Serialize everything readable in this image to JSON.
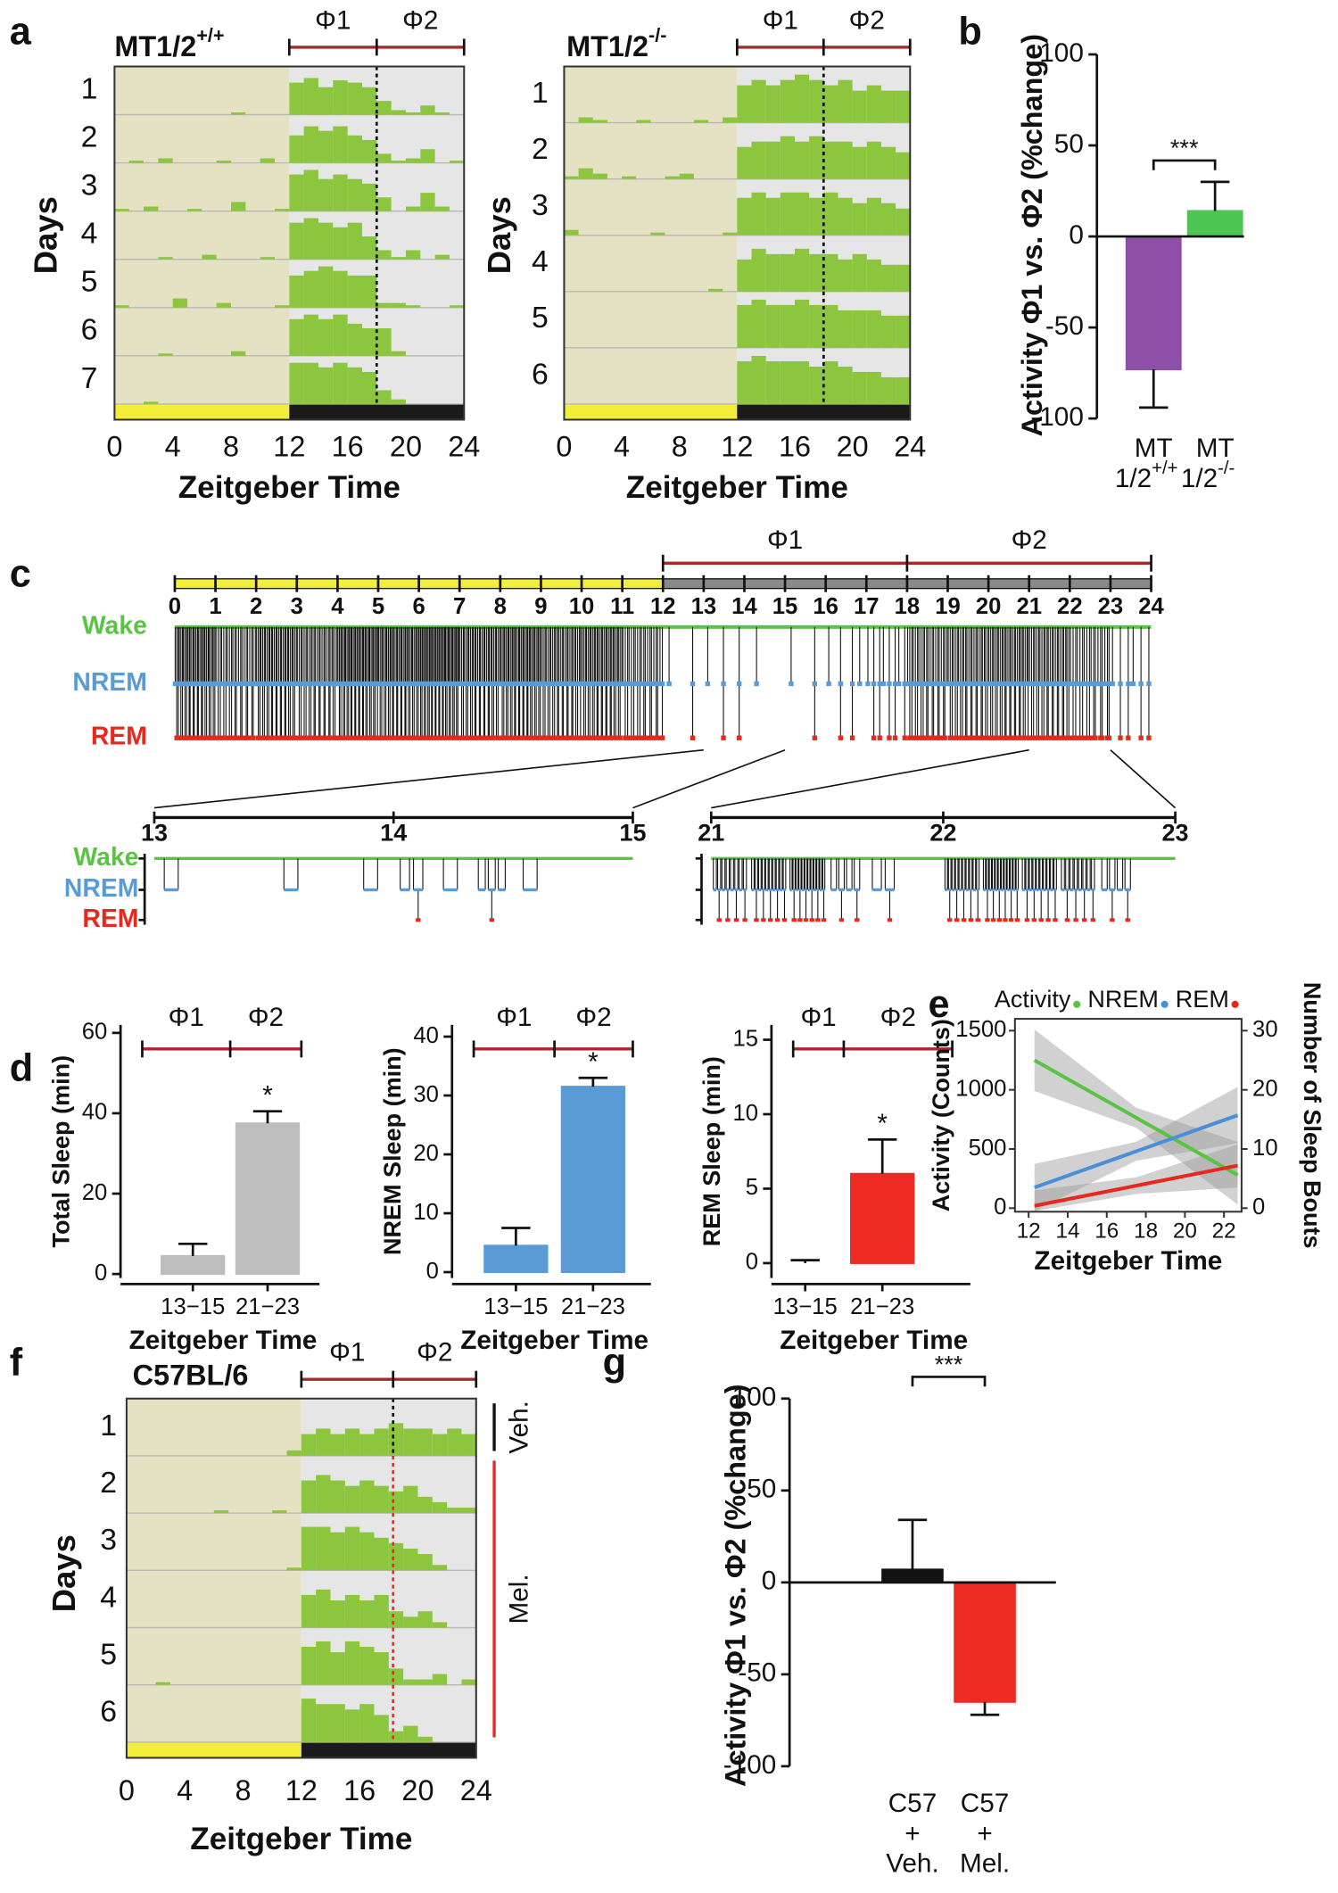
{
  "chart_data": [
    {
      "type": "actogram",
      "panel": "a",
      "title": "MT1/2",
      "title_sup": "+/+",
      "phases": [
        "Φ1",
        "Φ2"
      ],
      "phase_bounds": [
        12,
        18,
        24
      ],
      "light_end": 12,
      "days": [
        1,
        2,
        3,
        4,
        5,
        6,
        7
      ],
      "ylabel": "Days",
      "xlabel": "Zeitgeber Time",
      "xlim": [
        0,
        24
      ],
      "xticks": [
        0,
        4,
        8,
        12,
        16,
        20,
        24
      ],
      "color": "#8cc63f",
      "activity": [
        [
          0,
          0,
          0,
          0,
          0,
          0,
          0,
          0,
          0.05,
          0,
          0,
          0,
          0.7,
          0.8,
          0.6,
          0.75,
          0.7,
          0.6,
          0.3,
          0.1,
          0.05,
          0.2,
          0.05,
          0
        ],
        [
          0,
          0.05,
          0,
          0.1,
          0,
          0,
          0,
          0.05,
          0,
          0,
          0.1,
          0,
          0.6,
          0.8,
          0.7,
          0.8,
          0.6,
          0.5,
          0.2,
          0.05,
          0.1,
          0.3,
          0,
          0.05
        ],
        [
          0.05,
          0,
          0.1,
          0,
          0,
          0.05,
          0,
          0,
          0.2,
          0,
          0,
          0.05,
          0.8,
          0.9,
          0.7,
          0.8,
          0.7,
          0.6,
          0.3,
          0,
          0.1,
          0.4,
          0.1,
          0
        ],
        [
          0,
          0,
          0,
          0.05,
          0,
          0,
          0.1,
          0,
          0,
          0,
          0.05,
          0,
          0.8,
          0.9,
          0.8,
          0.7,
          0.8,
          0.5,
          0.2,
          0.05,
          0.2,
          0,
          0.1,
          0
        ],
        [
          0.05,
          0,
          0,
          0,
          0.2,
          0,
          0,
          0.1,
          0,
          0,
          0,
          0.05,
          0.7,
          0.8,
          0.9,
          0.8,
          0.7,
          0.7,
          0.1,
          0.1,
          0.05,
          0,
          0,
          0.05
        ],
        [
          0,
          0,
          0,
          0.05,
          0,
          0,
          0,
          0,
          0.1,
          0,
          0,
          0,
          0.8,
          0.9,
          0.8,
          0.9,
          0.7,
          0.6,
          0.6,
          0.1,
          0,
          0,
          0,
          0
        ],
        [
          0,
          0,
          0.05,
          0,
          0,
          0,
          0,
          0,
          0,
          0,
          0,
          0,
          0.9,
          0.9,
          0.8,
          0.9,
          0.8,
          0.7,
          0.3,
          0.1,
          0,
          0,
          0,
          0
        ]
      ]
    },
    {
      "type": "actogram",
      "title": "MT1/2",
      "title_sup": "-/-",
      "phases": [
        "Φ1",
        "Φ2"
      ],
      "phase_bounds": [
        12,
        18,
        24
      ],
      "light_end": 12,
      "days": [
        1,
        2,
        3,
        4,
        5,
        6
      ],
      "ylabel": "Days",
      "xlabel": "Zeitgeber Time",
      "xlim": [
        0,
        24
      ],
      "xticks": [
        0,
        4,
        8,
        12,
        16,
        20,
        24
      ],
      "color": "#8cc63f",
      "activity": [
        [
          0,
          0.1,
          0.05,
          0,
          0,
          0.05,
          0,
          0,
          0,
          0.05,
          0,
          0.1,
          0.7,
          0.8,
          0.7,
          0.8,
          0.9,
          0.8,
          0.7,
          0.8,
          0.6,
          0.7,
          0.6,
          0.6
        ],
        [
          0.05,
          0.2,
          0.1,
          0,
          0.05,
          0,
          0,
          0.05,
          0.1,
          0,
          0,
          0,
          0.6,
          0.7,
          0.7,
          0.8,
          0.7,
          0.8,
          0.7,
          0.7,
          0.6,
          0.7,
          0.6,
          0.5
        ],
        [
          0.1,
          0,
          0,
          0,
          0,
          0,
          0.05,
          0,
          0,
          0,
          0,
          0.05,
          0.7,
          0.8,
          0.7,
          0.8,
          0.8,
          0.7,
          0.8,
          0.7,
          0.6,
          0.7,
          0.6,
          0.5
        ],
        [
          0,
          0,
          0,
          0,
          0,
          0,
          0,
          0,
          0,
          0,
          0.05,
          0,
          0.6,
          0.8,
          0.7,
          0.7,
          0.8,
          0.7,
          0.7,
          0.6,
          0.7,
          0.6,
          0.5,
          0.5
        ],
        [
          0,
          0,
          0,
          0,
          0,
          0,
          0,
          0,
          0,
          0,
          0,
          0,
          0.8,
          0.9,
          0.8,
          0.8,
          0.9,
          0.8,
          0.8,
          0.7,
          0.7,
          0.7,
          0.6,
          0.6
        ],
        [
          0,
          0,
          0,
          0,
          0,
          0,
          0,
          0,
          0,
          0,
          0,
          0,
          0.8,
          0.9,
          0.8,
          0.8,
          0.8,
          0.7,
          0.8,
          0.7,
          0.6,
          0.6,
          0.5,
          0.5
        ]
      ]
    },
    {
      "type": "bar",
      "panel": "b",
      "ylabel": "Activity Φ1 vs. Φ2 (%change)",
      "categories": [
        {
          "line1": "MT",
          "line2": "1/2",
          "sup": "+/+"
        },
        {
          "line1": "MT",
          "line2": "1/2",
          "sup": "-/-"
        }
      ],
      "values": [
        -73,
        14
      ],
      "errors": [
        21,
        16
      ],
      "colors": [
        "#8e4fa8",
        "#4cc552"
      ],
      "significance": "***",
      "ylim": [
        -100,
        100
      ],
      "yticks": [
        -100,
        -50,
        0,
        50,
        100
      ]
    },
    {
      "type": "hypnogram",
      "panel": "c",
      "phases": [
        "Φ1",
        "Φ2"
      ],
      "phase_bounds": [
        12,
        18,
        24
      ],
      "light_end": 12,
      "xlim": [
        0,
        24
      ],
      "xticks": [
        0,
        1,
        2,
        3,
        4,
        5,
        6,
        7,
        8,
        9,
        10,
        11,
        12,
        13,
        14,
        15,
        16,
        17,
        18,
        19,
        20,
        21,
        22,
        23,
        24
      ],
      "states": [
        "Wake",
        "NREM",
        "REM"
      ],
      "state_colors": [
        "#5cc244",
        "#5b9bd5",
        "#e8281e"
      ],
      "transitions_per_hour": [
        30,
        22,
        28,
        25,
        32,
        30,
        34,
        28,
        30,
        26,
        28,
        20,
        2,
        3,
        1,
        2,
        4,
        8,
        22,
        24,
        26,
        24,
        18,
        6
      ],
      "zoom_states": [
        "Wake",
        "NREM",
        "REM"
      ],
      "zooms": [
        {
          "xlim": [
            13,
            15
          ],
          "xticks": [
            13,
            14,
            15
          ],
          "transitions": [
            1,
            0,
            0,
            1,
            0,
            1,
            2,
            1,
            3,
            1,
            0,
            0
          ]
        },
        {
          "xlim": [
            21,
            23
          ],
          "xticks": [
            21,
            22,
            23
          ],
          "transitions": [
            8,
            10,
            12,
            4,
            2,
            0,
            10,
            12,
            10,
            8,
            4,
            0
          ]
        }
      ]
    },
    {
      "type": "bar",
      "panel": "d",
      "phases": [
        "Φ1",
        "Φ2"
      ],
      "ylabel": "Total Sleep (min)",
      "xlabel": "Zeitgeber Time",
      "categories": [
        "13−15",
        "21−23"
      ],
      "values": [
        4.5,
        37.5
      ],
      "errors": [
        3,
        3
      ],
      "colors": [
        "#bdbdbd",
        "#bdbdbd"
      ],
      "significance": "*",
      "ylim": [
        -1,
        62
      ],
      "yticks": [
        0,
        20,
        40,
        60
      ]
    },
    {
      "type": "bar",
      "phases": [
        "Φ1",
        "Φ2"
      ],
      "ylabel": "NREM Sleep (min)",
      "xlabel": "Zeitgeber Time",
      "categories": [
        "13−15",
        "21−23"
      ],
      "values": [
        4.5,
        31.5
      ],
      "errors": [
        3,
        1.5
      ],
      "colors": [
        "#5b9bd5",
        "#5b9bd5"
      ],
      "significance": "*",
      "ylim": [
        -1,
        42
      ],
      "yticks": [
        0,
        10,
        20,
        30,
        40
      ]
    },
    {
      "type": "bar",
      "phases": [
        "Φ1",
        "Φ2"
      ],
      "ylabel": "REM Sleep (min)",
      "xlabel": "Zeitgeber Time",
      "categories": [
        "13−15",
        "21−23"
      ],
      "values": [
        0,
        6
      ],
      "errors": [
        0.2,
        2.3
      ],
      "colors": [
        "#ee2a24",
        "#ee2a24"
      ],
      "significance": "*",
      "ylim": [
        -1,
        16
      ],
      "yticks": [
        0,
        5,
        10,
        15
      ]
    },
    {
      "type": "line",
      "panel": "e",
      "xlabel": "Zeitgeber Time",
      "ylabel": "Activity (Counts)",
      "y2label": "Number of Sleep Bouts",
      "xlim": [
        11.3,
        22.9
      ],
      "xticks": [
        12,
        14,
        16,
        18,
        20,
        22
      ],
      "ylim": [
        -30,
        1600
      ],
      "yticks": [
        0,
        500,
        1000,
        1500
      ],
      "y2lim": [
        -0.6,
        32
      ],
      "y2ticks": [
        0,
        10,
        20,
        30
      ],
      "legend": "top",
      "series": [
        {
          "name": "Activity",
          "color": "#5cc244",
          "x": [
            12.3,
            17.5,
            22.7
          ],
          "values": [
            1250,
            765,
            280
          ],
          "ci_lower": [
            990,
            680,
            30
          ],
          "ci_upper": [
            1510,
            850,
            560
          ]
        },
        {
          "name": "NREM",
          "color": "#4a90d9",
          "axis": "y2",
          "x": [
            12.3,
            17.5,
            22.7
          ],
          "values": [
            3.5,
            9.6,
            15.7
          ],
          "ci_lower": [
            -0.5,
            8,
            11
          ],
          "ci_upper": [
            7.5,
            11.2,
            20.5
          ]
        },
        {
          "name": "REM",
          "color": "#e8281e",
          "axis": "y2",
          "x": [
            12.3,
            17.5,
            22.7
          ],
          "values": [
            0.4,
            3.8,
            7.2
          ],
          "ci_lower": [
            -0.5,
            2.4,
            3.5
          ],
          "ci_upper": [
            3,
            5.2,
            10.8
          ]
        }
      ]
    },
    {
      "type": "actogram",
      "panel": "f",
      "title": "C57BL/6",
      "phases": [
        "Φ1",
        "Φ2"
      ],
      "phase_bounds": [
        12,
        18.3,
        24
      ],
      "light_end": 12,
      "days": [
        1,
        2,
        3,
        4,
        5,
        6
      ],
      "ylabel": "Days",
      "xlabel": "Zeitgeber Time",
      "xlim": [
        0,
        24
      ],
      "xticks": [
        0,
        4,
        8,
        12,
        16,
        20,
        24
      ],
      "color": "#8cc63f",
      "treatments": [
        {
          "label": "Veh.",
          "days": [
            1,
            1
          ],
          "color": "#111111"
        },
        {
          "label": "Mel.",
          "days": [
            2,
            6
          ],
          "color": "#ee2a24"
        }
      ],
      "activity": [
        [
          0,
          0,
          0,
          0,
          0,
          0,
          0,
          0,
          0,
          0,
          0,
          0.1,
          0.4,
          0.5,
          0.4,
          0.5,
          0.4,
          0.5,
          0.6,
          0.5,
          0.5,
          0.4,
          0.5,
          0.4
        ],
        [
          0,
          0,
          0,
          0,
          0,
          0,
          0.05,
          0,
          0,
          0,
          0.05,
          0,
          0.6,
          0.7,
          0.6,
          0.5,
          0.6,
          0.5,
          0.4,
          0.5,
          0.3,
          0.2,
          0.1,
          0.1
        ],
        [
          0,
          0,
          0,
          0,
          0,
          0,
          0,
          0,
          0,
          0,
          0,
          0.05,
          0.8,
          0.8,
          0.7,
          0.8,
          0.7,
          0.6,
          0.5,
          0.4,
          0.3,
          0.1,
          0,
          0
        ],
        [
          0,
          0,
          0,
          0,
          0,
          0,
          0,
          0,
          0,
          0,
          0,
          0,
          0.6,
          0.7,
          0.5,
          0.6,
          0.5,
          0.6,
          0.3,
          0.2,
          0.3,
          0.1,
          0,
          0
        ],
        [
          0,
          0,
          0.05,
          0,
          0,
          0,
          0,
          0,
          0,
          0,
          0,
          0,
          0.7,
          0.8,
          0.6,
          0.8,
          0.7,
          0.6,
          0.3,
          0.1,
          0.1,
          0.2,
          0,
          0.1
        ],
        [
          0,
          0,
          0,
          0,
          0,
          0,
          0,
          0,
          0,
          0,
          0,
          0,
          0.8,
          0.7,
          0.7,
          0.6,
          0.7,
          0.5,
          0.2,
          0.3,
          0.1,
          0,
          0,
          0
        ]
      ]
    },
    {
      "type": "bar",
      "panel": "g",
      "ylabel": "Activity Φ1 vs. Φ2 (%change)",
      "categories": [
        [
          "C57",
          "+",
          "Veh."
        ],
        [
          "C57",
          "+",
          "Mel."
        ]
      ],
      "values": [
        7,
        -65
      ],
      "errors": [
        27,
        7
      ],
      "colors": [
        "#111111",
        "#ee2a24"
      ],
      "significance": "***",
      "ylim": [
        -100,
        100
      ],
      "yticks": [
        -100,
        -50,
        0,
        50,
        100
      ]
    }
  ]
}
